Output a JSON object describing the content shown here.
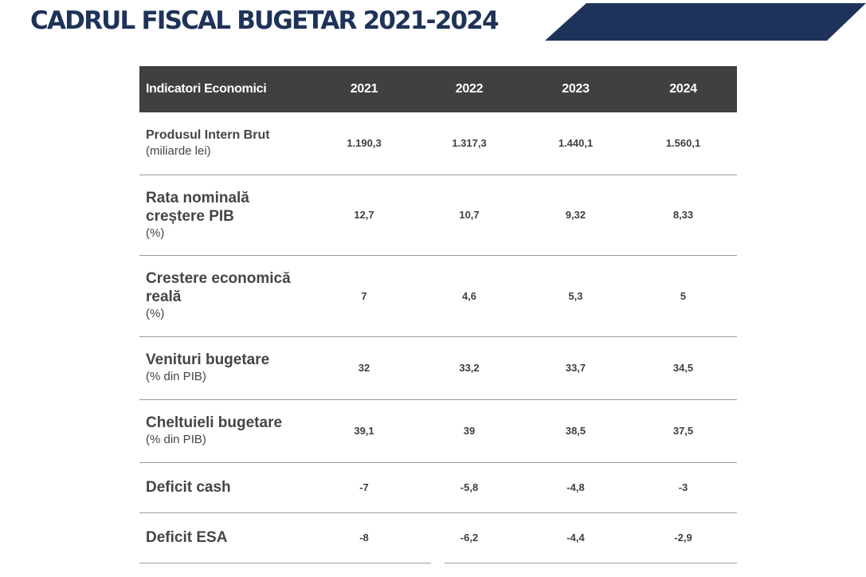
{
  "header": {
    "title": "CADRUL FISCAL BUGETAR 2021-2024"
  },
  "table": {
    "columns": [
      "Indicatori Economici",
      "2021",
      "2022",
      "2023",
      "2024"
    ],
    "rows": [
      {
        "label": "Produsul Intern Brut",
        "unit": "(miliarde lei)",
        "values": [
          "1.190,3",
          "1.317,3",
          "1.440,1",
          "1.560,1"
        ]
      },
      {
        "label_lines": [
          "Rata nominală",
          "creștere PIB"
        ],
        "unit": "(%)",
        "values": [
          "12,7",
          "10,7",
          "9,32",
          "8,33"
        ]
      },
      {
        "label_lines": [
          "Crestere economică",
          "reală"
        ],
        "unit": "(%)",
        "values": [
          "7",
          "4,6",
          "5,3",
          "5"
        ]
      },
      {
        "label": "Venituri bugetare",
        "unit": "(% din PIB)",
        "values": [
          "32",
          "33,2",
          "33,7",
          "34,5"
        ]
      },
      {
        "label": "Cheltuieli bugetare",
        "unit": "(% din PIB)",
        "values": [
          "39,1",
          "39",
          "38,5",
          "37,5"
        ]
      },
      {
        "label": "Deficit cash",
        "values": [
          "-7",
          "-5,8",
          "-4,8",
          "-3"
        ]
      },
      {
        "label": "Deficit ESA",
        "values": [
          "-8",
          "-6,2",
          "-4,4",
          "-2,9"
        ]
      }
    ]
  },
  "colors": {
    "brand_navy": "#1e3359",
    "header_bg": "#3f4040",
    "text": "#3f3f3f"
  }
}
